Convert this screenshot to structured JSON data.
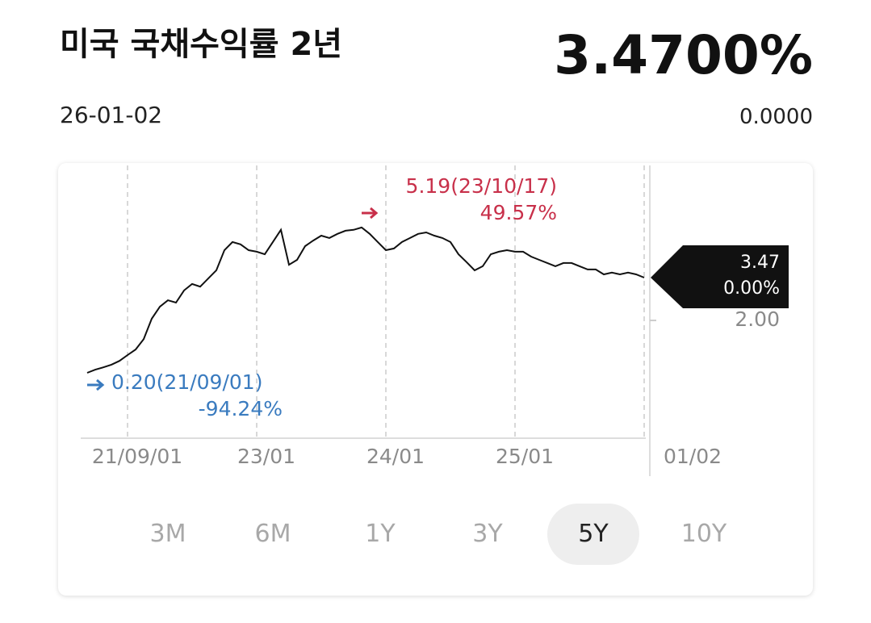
{
  "header": {
    "title": "미국 국채수익률 2년",
    "price": "3.4700%",
    "date": "26-01-02",
    "change": "0.0000"
  },
  "chart_data": {
    "type": "line",
    "categories": [
      null,
      null,
      null,
      null,
      null,
      "21/09/01",
      null,
      null,
      null,
      null,
      null,
      null,
      null,
      null,
      null,
      null,
      null,
      null,
      null,
      null,
      null,
      "23/01",
      null,
      null,
      null,
      null,
      null,
      null,
      null,
      null,
      null,
      null,
      null,
      null,
      null,
      null,
      null,
      "24/01",
      null,
      null,
      null,
      null,
      null,
      null,
      null,
      null,
      null,
      null,
      null,
      null,
      null,
      null,
      null,
      "25/01",
      null,
      null,
      null,
      null,
      null,
      null,
      null,
      null,
      null,
      null,
      null,
      null,
      null,
      null,
      null,
      "01/02"
    ],
    "series": [
      {
        "color": "#111111",
        "values": [
          0.2,
          0.31,
          0.39,
          0.48,
          0.61,
          0.81,
          1.0,
          1.36,
          2.06,
          2.47,
          2.69,
          2.61,
          3.03,
          3.25,
          3.16,
          3.44,
          3.72,
          4.41,
          4.69,
          4.61,
          4.41,
          4.36,
          4.27,
          4.69,
          5.11,
          3.91,
          4.08,
          4.55,
          4.74,
          4.91,
          4.83,
          4.97,
          5.08,
          5.11,
          5.19,
          4.97,
          4.69,
          4.41,
          4.47,
          4.69,
          4.83,
          4.97,
          5.02,
          4.91,
          4.83,
          4.69,
          4.27,
          4.0,
          3.72,
          3.86,
          4.27,
          4.36,
          4.41,
          4.36,
          4.36,
          4.19,
          4.08,
          3.97,
          3.86,
          3.97,
          3.97,
          3.86,
          3.75,
          3.75,
          3.58,
          3.64,
          3.58,
          3.64,
          3.58,
          3.47
        ]
      }
    ],
    "ylim": [
      -1.96,
      7.32
    ],
    "yticks": [
      {
        "value": 2,
        "label": "2.00"
      }
    ],
    "max_annotation": {
      "label": "5.19(23/10/17)",
      "change": "49.57%"
    },
    "min_annotation": {
      "label": "0.20(21/09/01)",
      "change": "-94.24%"
    },
    "last_label": {
      "price": "3.47",
      "change": "0.00%"
    }
  },
  "periods": [
    "3M",
    "6M",
    "1Y",
    "3Y",
    "5Y",
    "10Y"
  ],
  "selected_period": "5Y"
}
